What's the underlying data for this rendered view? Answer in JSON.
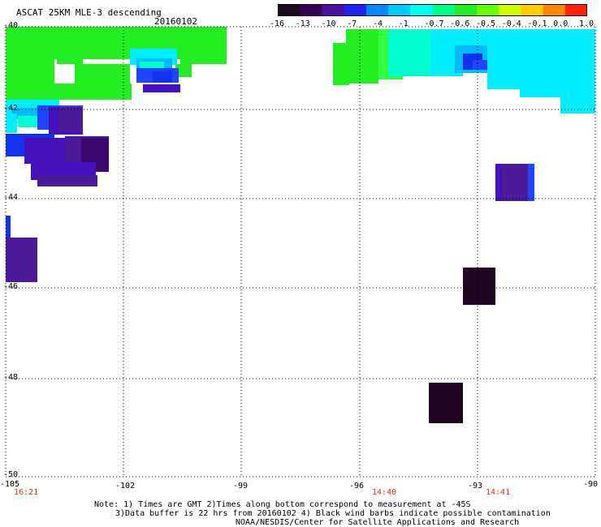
{
  "header": {
    "title": "ASCAT 25KM MLE-3 descending",
    "date": "20160102"
  },
  "colorbar": {
    "labels": [
      "-16",
      "-13",
      "-10",
      "-7",
      "-4",
      "-1",
      "-0.7",
      "-0.6",
      "-0.5",
      "-0.4",
      "-0.1",
      "0.0",
      "1.0"
    ],
    "colors": [
      "#1a0a20",
      "#3a0055",
      "#4a10a0",
      "#2222ee",
      "#0088ff",
      "#00ccff",
      "#00ffee",
      "#00ff88",
      "#22ee22",
      "#66ff00",
      "#ccff00",
      "#ffcc00",
      "#ff8800",
      "#ff2200"
    ]
  },
  "axes": {
    "y_labels": [
      "-40",
      "-42",
      "-44",
      "-46",
      "-48",
      "-50"
    ],
    "x_labels": [
      "-105",
      "-102",
      "-99",
      "-96",
      "-93",
      "-90"
    ],
    "time_labels": [
      "16:21",
      "14:40",
      "14:41"
    ]
  },
  "notes": {
    "line1": "Note: 1) Times are GMT 2)Times along bottom correspond to measurement at -45S",
    "line2": "3)Data buffer is 22 hrs from 20160102 4) Black wind barbs indicate possible contamination",
    "line3": "NOAA/NESDIS/Center for Satellite Applications and Research"
  },
  "map_data": {
    "lon_range": [
      -105,
      -90
    ],
    "lat_range": [
      -50,
      -40
    ],
    "palette": {
      "green": "#22ee22",
      "lightgreen": "#33ff44",
      "cyan": "#00eeff",
      "aqua": "#00ffcc",
      "skyblue": "#00bbff",
      "blue": "#1133ee",
      "royal": "#2244ff",
      "indigo": "#4411bb",
      "purple": "#4a1a99",
      "darkpurple": "#3a0a70",
      "darkest": "#1e0520"
    }
  }
}
